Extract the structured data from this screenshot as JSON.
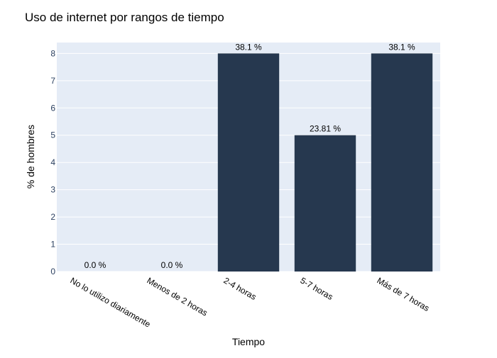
{
  "chart_data": {
    "type": "bar",
    "title": "Uso de internet por rangos de tiempo",
    "xlabel": "Tiempo",
    "ylabel": "% de hombres",
    "categories": [
      "No lo utilizo diariamente",
      "Menos de 2 horas",
      "2-4 horas",
      "5-7 horas",
      "Más de 7 horas"
    ],
    "values": [
      0,
      0,
      8,
      5,
      8
    ],
    "data_labels": [
      "0.0 %",
      "0.0 %",
      "38.1 %",
      "23.81 %",
      "38.1 %"
    ],
    "ylim": [
      0,
      8.4
    ],
    "yticks": [
      0,
      1,
      2,
      3,
      4,
      5,
      6,
      7,
      8
    ],
    "grid": true,
    "colors": {
      "bar": "#26384f",
      "plot_bg": "#e5ecf6",
      "grid": "#ffffff",
      "text": "#2a3f5f"
    }
  }
}
